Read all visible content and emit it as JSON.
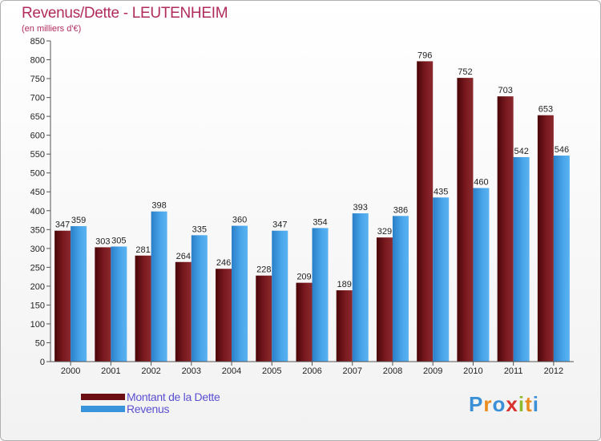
{
  "title": "Revenus/Dette - LEUTENHEIM",
  "subtitle": "(en milliers d'€)",
  "colors": {
    "debt": "#6b0f14",
    "revenue": "#3a94dc",
    "title": "#b02c5b",
    "legend_text": "#5a4fd0"
  },
  "legend": {
    "debt_label": "Montant de la Dette",
    "revenue_label": "Revenus"
  },
  "logo": {
    "text": "Proxiti",
    "letter_colors": [
      "#3a8fd6",
      "#e98b1e",
      "#3a8fd6",
      "#d7322d",
      "#8dbb2f",
      "#e98b1e",
      "#3a8fd6"
    ]
  },
  "chart_data": {
    "type": "bar",
    "categories": [
      "2000",
      "2001",
      "2002",
      "2003",
      "2004",
      "2005",
      "2006",
      "2007",
      "2008",
      "2009",
      "2010",
      "2011",
      "2012"
    ],
    "series": [
      {
        "name": "Montant de la Dette",
        "values": [
          347,
          303,
          281,
          264,
          246,
          228,
          209,
          189,
          329,
          796,
          752,
          703,
          653
        ]
      },
      {
        "name": "Revenus",
        "values": [
          359,
          305,
          398,
          335,
          360,
          347,
          354,
          393,
          386,
          435,
          460,
          542,
          546
        ]
      }
    ],
    "title": "Revenus/Dette - LEUTENHEIM",
    "ylabel": "(en milliers d'€)",
    "ylim": [
      0,
      850
    ],
    "ytick_step": 50,
    "grid": false,
    "legend_position": "bottom-left"
  }
}
